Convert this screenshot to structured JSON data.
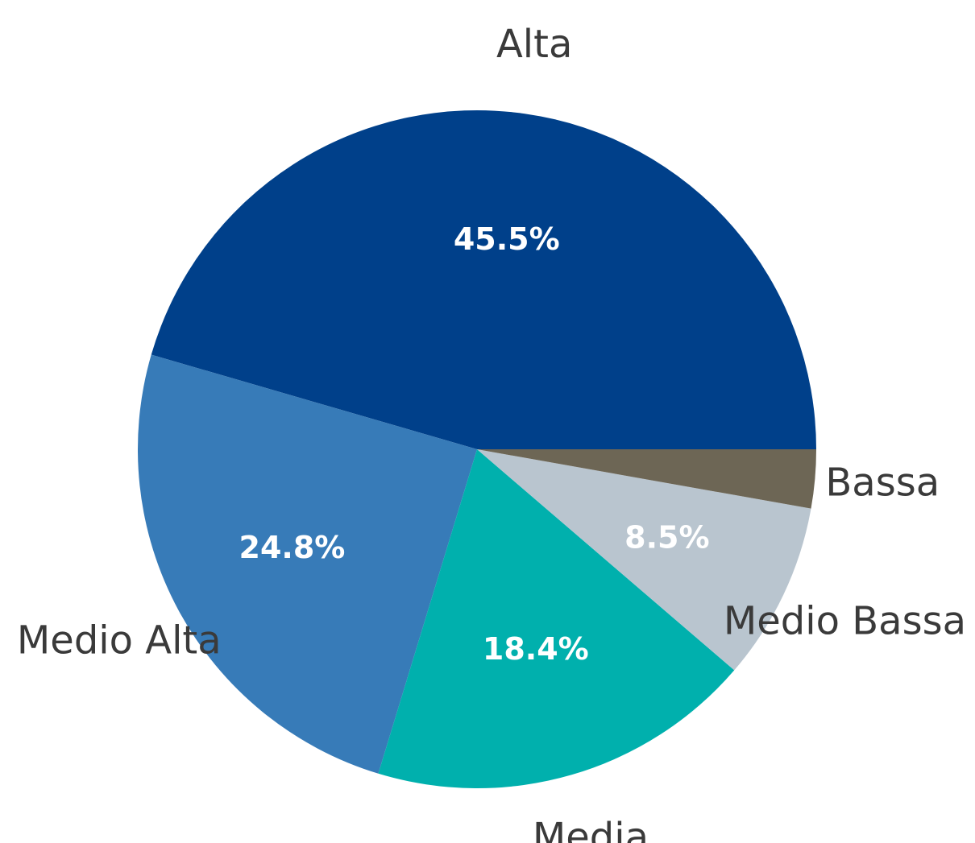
{
  "chart_data": {
    "type": "pie",
    "categories": [
      "Alta",
      "Medio Alta",
      "Media",
      "Medio Bassa",
      "Bassa"
    ],
    "values": [
      45.5,
      24.8,
      18.4,
      8.5,
      2.8
    ],
    "value_labels": [
      "45.5%",
      "24.8%",
      "18.4%",
      "8.5%",
      null
    ],
    "colors": [
      "#00408a",
      "#377bb8",
      "#00b0ad",
      "#b9c5cf",
      "#6d6655"
    ]
  }
}
